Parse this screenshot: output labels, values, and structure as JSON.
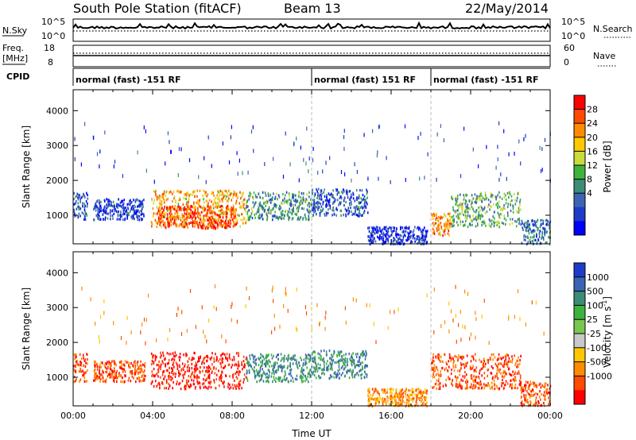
{
  "header": {
    "station": "South Pole Station (fitACF)",
    "beam": "Beam 13",
    "date": "22/May/2014"
  },
  "top_panels": {
    "nsky_label": "N.Sky",
    "nsearch_label": "N.Search",
    "nsky_ticks": [
      "10^5",
      "10^0"
    ],
    "nsearch_ticks": [
      "10^5",
      "10^0"
    ],
    "freq_label": "Freq.",
    "freq_unit": "[MHz]",
    "freq_ticks": [
      "18",
      "8"
    ],
    "nave_label": "Nave",
    "nave_ticks": [
      "60",
      "0"
    ],
    "cpid_label": "CPID",
    "cpid_segments": [
      {
        "start": 0,
        "end": 12,
        "label": "normal (fast) -151 RF"
      },
      {
        "start": 12,
        "end": 18,
        "label": "normal (fast) 151 RF"
      },
      {
        "start": 18,
        "end": 24,
        "label": "normal (fast) -151 RF"
      }
    ]
  },
  "chart_data": [
    {
      "type": "heatmap",
      "name": "power",
      "ylabel": "Slant Range [km]",
      "ylim": [
        180,
        4600
      ],
      "xlim": [
        0,
        24
      ],
      "yticks": [
        1000,
        2000,
        3000,
        4000
      ],
      "colorbar": {
        "label": "Power [dB]",
        "ticks": [
          "28",
          "24",
          "20",
          "16",
          "12",
          "8",
          "4"
        ],
        "colors": [
          "#ff0000",
          "#ff4b00",
          "#ff8c00",
          "#ffc800",
          "#c8dc3c",
          "#3cb43c",
          "#3c8c78",
          "#3c64b4",
          "#1e3cc8",
          "#0000ff"
        ]
      },
      "regions": [
        {
          "t0": 0.0,
          "t1": 0.7,
          "r0": 900,
          "r1": 1700,
          "level": 8
        },
        {
          "t0": 1.0,
          "t1": 3.6,
          "r0": 900,
          "r1": 1500,
          "level": 6
        },
        {
          "t0": 3.9,
          "t1": 8.7,
          "r0": 700,
          "r1": 1750,
          "level": 22
        },
        {
          "t0": 4.2,
          "t1": 8.2,
          "r0": 650,
          "r1": 1300,
          "level": 28
        },
        {
          "t0": 8.7,
          "t1": 12.0,
          "r0": 900,
          "r1": 1700,
          "level": 12
        },
        {
          "t0": 12.0,
          "t1": 14.8,
          "r0": 1000,
          "r1": 1800,
          "level": 8
        },
        {
          "t0": 14.8,
          "t1": 17.8,
          "r0": 200,
          "r1": 700,
          "level": 5
        },
        {
          "t0": 18.0,
          "t1": 19.0,
          "r0": 450,
          "r1": 1100,
          "level": 24
        },
        {
          "t0": 19.0,
          "t1": 22.5,
          "r0": 700,
          "r1": 1700,
          "level": 14
        },
        {
          "t0": 22.5,
          "t1": 24.0,
          "r0": 200,
          "r1": 900,
          "level": 10
        }
      ]
    },
    {
      "type": "heatmap",
      "name": "velocity",
      "ylabel": "Slant Range [km]",
      "xlabel": "Time UT",
      "ylim": [
        180,
        4600
      ],
      "xlim": [
        0,
        24
      ],
      "yticks": [
        1000,
        2000,
        3000,
        4000
      ],
      "xticks": [
        "00:00",
        "04:00",
        "08:00",
        "12:00",
        "16:00",
        "20:00",
        "00:00"
      ],
      "colorbar": {
        "label": "Velocity [m s",
        "label_sup": "-1",
        "label_end": "]",
        "ticks": [
          "1000",
          "500",
          "100",
          "25",
          "-25",
          "-100",
          "-500",
          "-1000"
        ],
        "colors": [
          "#1e3cc8",
          "#3c64b4",
          "#3c8c78",
          "#3cb43c",
          "#78c850",
          "#c8c8c8",
          "#ffc800",
          "#ff8c00",
          "#ff4b00",
          "#ff0000"
        ]
      },
      "regions": [
        {
          "t0": 0.0,
          "t1": 0.7,
          "r0": 900,
          "r1": 1700,
          "level": -200
        },
        {
          "t0": 1.0,
          "t1": 3.6,
          "r0": 900,
          "r1": 1500,
          "level": -150
        },
        {
          "t0": 3.9,
          "t1": 8.7,
          "r0": 700,
          "r1": 1750,
          "level": -400
        },
        {
          "t0": 8.7,
          "t1": 12.0,
          "r0": 900,
          "r1": 1700,
          "level": 80
        },
        {
          "t0": 12.0,
          "t1": 14.8,
          "r0": 1000,
          "r1": 1800,
          "level": 60
        },
        {
          "t0": 14.8,
          "t1": 17.8,
          "r0": 200,
          "r1": 700,
          "level": -60
        },
        {
          "t0": 18.0,
          "t1": 22.5,
          "r0": 700,
          "r1": 1700,
          "level": -300
        },
        {
          "t0": 22.5,
          "t1": 24.0,
          "r0": 200,
          "r1": 900,
          "level": -120
        }
      ]
    }
  ]
}
